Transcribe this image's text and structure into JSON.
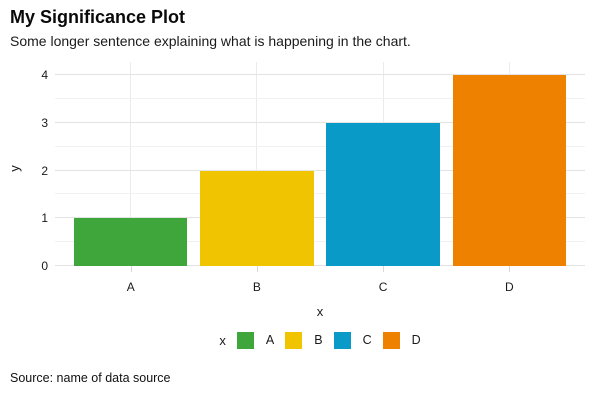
{
  "header": {
    "title": "My Significance Plot",
    "subtitle": "Some longer sentence explaining what is happening in the chart."
  },
  "footer": {
    "source": "Source: name of data source"
  },
  "chart_data": {
    "type": "bar",
    "title": "My Significance Plot",
    "subtitle": "Some longer sentence explaining what is happening in the chart.",
    "categories": [
      "A",
      "B",
      "C",
      "D"
    ],
    "values": [
      1,
      2,
      3,
      4
    ],
    "bar_colors": [
      "#3fa63b",
      "#f0c400",
      "#0a9ac7",
      "#ee8100"
    ],
    "xlabel": "x",
    "ylabel": "y",
    "ylim": [
      0,
      4
    ],
    "yticks": [
      0,
      1,
      2,
      3,
      4
    ],
    "minor_grid_step": 0.5,
    "grid": "on",
    "legend": {
      "title": "x",
      "position": "bottom",
      "entries": [
        {
          "label": "A",
          "color": "#3fa63b"
        },
        {
          "label": "B",
          "color": "#f0c400"
        },
        {
          "label": "C",
          "color": "#0a9ac7"
        },
        {
          "label": "D",
          "color": "#ee8100"
        }
      ]
    },
    "source": "Source: name of data source"
  },
  "colors": {
    "background": "#ffffff",
    "major_grid": "#e3e3e3",
    "minor_grid": "#f1f1f1",
    "tick_mark": "#d8d8d8",
    "text": "#1a1a1a"
  }
}
